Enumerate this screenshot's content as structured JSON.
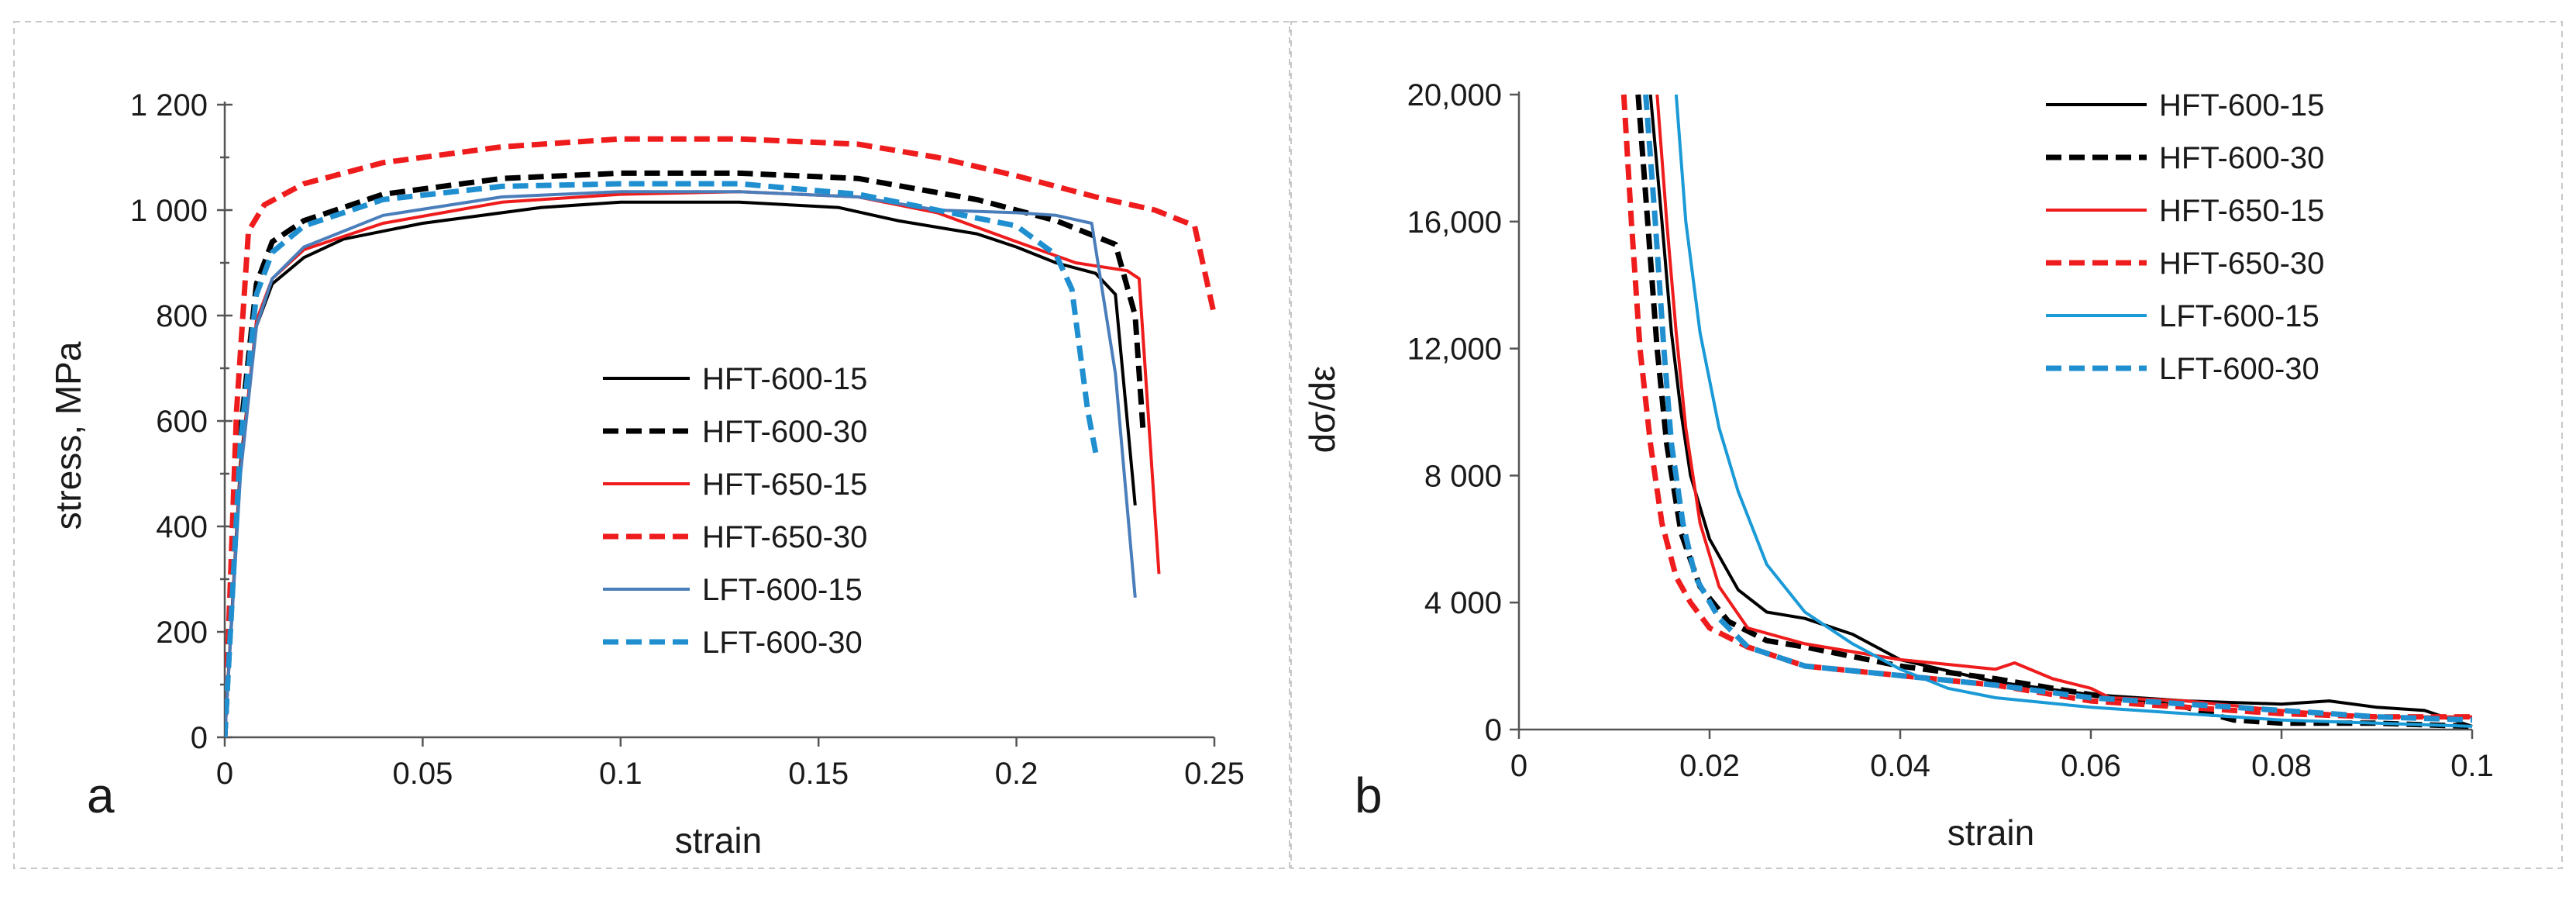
{
  "chart_data": [
    {
      "panel": "a",
      "type": "line",
      "xlabel": "strain",
      "ylabel": "stress, MPa",
      "xlim": [
        0,
        0.25
      ],
      "ylim": [
        0,
        1200
      ],
      "xticks": [
        0,
        0.05,
        0.1,
        0.15,
        0.2,
        0.25
      ],
      "xtick_labels": [
        "0",
        "0.05",
        "0.1",
        "0.15",
        "0.2",
        "0.25"
      ],
      "yticks": [
        0,
        200,
        400,
        600,
        800,
        1000,
        1200
      ],
      "ytick_labels": [
        "0",
        "200",
        "400",
        "600",
        "800",
        "1 000",
        "1 200"
      ],
      "legend_position": "center-right",
      "series": [
        {
          "name": "HFT-600-15",
          "color": "#000000",
          "dash": "solid",
          "points": [
            [
              0,
              0
            ],
            [
              0.004,
              520
            ],
            [
              0.008,
              780
            ],
            [
              0.012,
              860
            ],
            [
              0.02,
              910
            ],
            [
              0.03,
              945
            ],
            [
              0.05,
              975
            ],
            [
              0.08,
              1005
            ],
            [
              0.1,
              1015
            ],
            [
              0.13,
              1015
            ],
            [
              0.155,
              1005
            ],
            [
              0.17,
              980
            ],
            [
              0.19,
              955
            ],
            [
              0.2,
              930
            ],
            [
              0.21,
              900
            ],
            [
              0.22,
              880
            ],
            [
              0.225,
              840
            ],
            [
              0.23,
              440
            ]
          ]
        },
        {
          "name": "HFT-600-30",
          "color": "#000000",
          "dash": "dashed",
          "points": [
            [
              0,
              0
            ],
            [
              0.004,
              580
            ],
            [
              0.008,
              860
            ],
            [
              0.012,
              940
            ],
            [
              0.02,
              980
            ],
            [
              0.04,
              1030
            ],
            [
              0.07,
              1060
            ],
            [
              0.1,
              1070
            ],
            [
              0.13,
              1070
            ],
            [
              0.16,
              1060
            ],
            [
              0.19,
              1020
            ],
            [
              0.21,
              980
            ],
            [
              0.225,
              935
            ],
            [
              0.23,
              800
            ],
            [
              0.232,
              580
            ]
          ]
        },
        {
          "name": "HFT-650-15",
          "color": "#ee1c1c",
          "dash": "solid",
          "points": [
            [
              0,
              0
            ],
            [
              0.004,
              510
            ],
            [
              0.008,
              790
            ],
            [
              0.012,
              870
            ],
            [
              0.02,
              925
            ],
            [
              0.04,
              975
            ],
            [
              0.07,
              1015
            ],
            [
              0.1,
              1030
            ],
            [
              0.13,
              1035
            ],
            [
              0.16,
              1025
            ],
            [
              0.18,
              995
            ],
            [
              0.2,
              940
            ],
            [
              0.215,
              900
            ],
            [
              0.228,
              885
            ],
            [
              0.231,
              870
            ],
            [
              0.236,
              310
            ]
          ]
        },
        {
          "name": "HFT-650-30",
          "color": "#ee1c1c",
          "dash": "dashed",
          "points": [
            [
              0,
              0
            ],
            [
              0.003,
              620
            ],
            [
              0.006,
              960
            ],
            [
              0.01,
              1010
            ],
            [
              0.02,
              1050
            ],
            [
              0.04,
              1090
            ],
            [
              0.07,
              1120
            ],
            [
              0.1,
              1135
            ],
            [
              0.13,
              1135
            ],
            [
              0.16,
              1125
            ],
            [
              0.18,
              1100
            ],
            [
              0.2,
              1065
            ],
            [
              0.22,
              1025
            ],
            [
              0.235,
              1000
            ],
            [
              0.245,
              970
            ],
            [
              0.25,
              800
            ]
          ]
        },
        {
          "name": "LFT-600-15",
          "color": "#4a7ebb",
          "dash": "solid",
          "points": [
            [
              0,
              0
            ],
            [
              0.004,
              500
            ],
            [
              0.008,
              780
            ],
            [
              0.012,
              870
            ],
            [
              0.02,
              930
            ],
            [
              0.04,
              990
            ],
            [
              0.07,
              1025
            ],
            [
              0.1,
              1035
            ],
            [
              0.13,
              1035
            ],
            [
              0.16,
              1025
            ],
            [
              0.18,
              1000
            ],
            [
              0.2,
              995
            ],
            [
              0.21,
              990
            ],
            [
              0.219,
              975
            ],
            [
              0.225,
              690
            ],
            [
              0.23,
              265
            ]
          ]
        },
        {
          "name": "LFT-600-30",
          "color": "#1f8fd0",
          "dash": "dashed",
          "points": [
            [
              0,
              0
            ],
            [
              0.004,
              560
            ],
            [
              0.008,
              840
            ],
            [
              0.012,
              920
            ],
            [
              0.02,
              970
            ],
            [
              0.04,
              1020
            ],
            [
              0.07,
              1045
            ],
            [
              0.1,
              1050
            ],
            [
              0.13,
              1050
            ],
            [
              0.16,
              1030
            ],
            [
              0.18,
              1000
            ],
            [
              0.2,
              970
            ],
            [
              0.21,
              915
            ],
            [
              0.214,
              850
            ],
            [
              0.218,
              620
            ],
            [
              0.22,
              540
            ]
          ]
        }
      ]
    },
    {
      "panel": "b",
      "type": "line",
      "xlabel": "strain",
      "ylabel": "dσ/dε",
      "xlim": [
        0,
        0.1
      ],
      "ylim": [
        0,
        20000
      ],
      "xticks": [
        0,
        0.02,
        0.04,
        0.06,
        0.08,
        0.1
      ],
      "xtick_labels": [
        "0",
        "0.02",
        "0.04",
        "0.06",
        "0.08",
        "0.1"
      ],
      "yticks": [
        0,
        4000,
        8000,
        12000,
        16000,
        20000
      ],
      "ytick_labels": [
        "0",
        "4 000",
        "8 000",
        "12,000",
        "16,000",
        "20,000"
      ],
      "legend_position": "top-right",
      "series": [
        {
          "name": "HFT-600-15",
          "color": "#000000",
          "dash": "solid",
          "points": [
            [
              0.0138,
              20000
            ],
            [
              0.015,
              16000
            ],
            [
              0.016,
              12500
            ],
            [
              0.017,
              10000
            ],
            [
              0.018,
              8000
            ],
            [
              0.02,
              6000
            ],
            [
              0.023,
              4400
            ],
            [
              0.026,
              3700
            ],
            [
              0.03,
              3500
            ],
            [
              0.035,
              3000
            ],
            [
              0.04,
              2200
            ],
            [
              0.05,
              1500
            ],
            [
              0.06,
              1100
            ],
            [
              0.07,
              900
            ],
            [
              0.08,
              800
            ],
            [
              0.085,
              900
            ],
            [
              0.09,
              700
            ],
            [
              0.095,
              600
            ],
            [
              0.1,
              100
            ]
          ]
        },
        {
          "name": "HFT-600-30",
          "color": "#000000",
          "dash": "dashed",
          "points": [
            [
              0.0125,
              20000
            ],
            [
              0.0135,
              16000
            ],
            [
              0.0145,
              12000
            ],
            [
              0.0155,
              9000
            ],
            [
              0.017,
              6200
            ],
            [
              0.019,
              4500
            ],
            [
              0.022,
              3400
            ],
            [
              0.026,
              2800
            ],
            [
              0.03,
              2600
            ],
            [
              0.04,
              2000
            ],
            [
              0.05,
              1600
            ],
            [
              0.06,
              1100
            ],
            [
              0.07,
              700
            ],
            [
              0.075,
              300
            ],
            [
              0.08,
              200
            ],
            [
              0.09,
              200
            ],
            [
              0.1,
              100
            ]
          ]
        },
        {
          "name": "HFT-650-15",
          "color": "#ee1c1c",
          "dash": "solid",
          "points": [
            [
              0.0145,
              20000
            ],
            [
              0.0155,
              16000
            ],
            [
              0.0165,
              12500
            ],
            [
              0.0175,
              9500
            ],
            [
              0.019,
              6500
            ],
            [
              0.021,
              4500
            ],
            [
              0.024,
              3200
            ],
            [
              0.03,
              2700
            ],
            [
              0.04,
              2200
            ],
            [
              0.05,
              1900
            ],
            [
              0.052,
              2100
            ],
            [
              0.056,
              1600
            ],
            [
              0.06,
              1300
            ],
            [
              0.062,
              1000
            ],
            [
              0.07,
              900
            ],
            [
              0.08,
              600
            ],
            [
              0.09,
              400
            ],
            [
              0.1,
              400
            ]
          ]
        },
        {
          "name": "HFT-650-30",
          "color": "#ee1c1c",
          "dash": "dashed",
          "points": [
            [
              0.011,
              20000
            ],
            [
              0.0118,
              16000
            ],
            [
              0.0127,
              12000
            ],
            [
              0.0138,
              9000
            ],
            [
              0.015,
              6500
            ],
            [
              0.0165,
              4800
            ],
            [
              0.018,
              4000
            ],
            [
              0.02,
              3200
            ],
            [
              0.024,
              2600
            ],
            [
              0.03,
              2000
            ],
            [
              0.04,
              1700
            ],
            [
              0.05,
              1400
            ],
            [
              0.06,
              900
            ],
            [
              0.07,
              700
            ],
            [
              0.08,
              500
            ],
            [
              0.09,
              400
            ],
            [
              0.1,
              400
            ]
          ]
        },
        {
          "name": "LFT-600-15",
          "color": "#1a9ad6",
          "dash": "solid",
          "points": [
            [
              0.0165,
              20000
            ],
            [
              0.0175,
              16000
            ],
            [
              0.019,
              12500
            ],
            [
              0.021,
              9500
            ],
            [
              0.023,
              7500
            ],
            [
              0.026,
              5200
            ],
            [
              0.03,
              3700
            ],
            [
              0.035,
              2700
            ],
            [
              0.04,
              1900
            ],
            [
              0.045,
              1300
            ],
            [
              0.05,
              1000
            ],
            [
              0.06,
              700
            ],
            [
              0.07,
              500
            ],
            [
              0.08,
              300
            ],
            [
              0.09,
              200
            ],
            [
              0.1,
              100
            ]
          ]
        },
        {
          "name": "LFT-600-30",
          "color": "#1f8fd0",
          "dash": "dashed",
          "points": [
            [
              0.0133,
              20000
            ],
            [
              0.0143,
              16000
            ],
            [
              0.0152,
              12000
            ],
            [
              0.016,
              9000
            ],
            [
              0.0172,
              6500
            ],
            [
              0.0185,
              4800
            ],
            [
              0.021,
              3500
            ],
            [
              0.024,
              2600
            ],
            [
              0.03,
              2000
            ],
            [
              0.04,
              1700
            ],
            [
              0.05,
              1400
            ],
            [
              0.06,
              1000
            ],
            [
              0.07,
              800
            ],
            [
              0.08,
              600
            ],
            [
              0.09,
              400
            ],
            [
              0.1,
              300
            ]
          ]
        }
      ]
    }
  ]
}
